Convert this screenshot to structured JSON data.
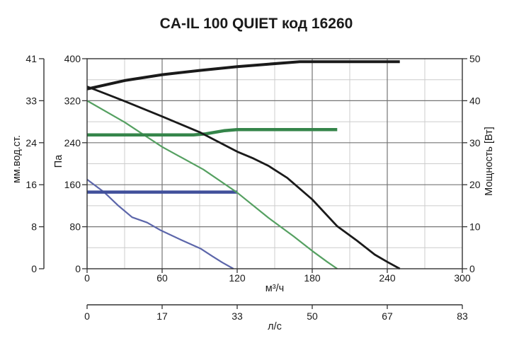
{
  "title": "CA-IL 100 QUIET код 16260",
  "chart_data": {
    "type": "line",
    "title": "CA-IL 100 QUIET код 16260",
    "grid": {
      "major_color": "#757575",
      "minor_color": "#cccccc",
      "border_color": "#333333",
      "tick_color": "#333333"
    },
    "axes": {
      "x_primary": {
        "label": "м³/ч",
        "range": [
          0,
          300
        ],
        "ticks": [
          0,
          60,
          120,
          180,
          240,
          300
        ],
        "minor_ticks": [
          30,
          90,
          150,
          210,
          270
        ]
      },
      "x_secondary": {
        "label": "л/с",
        "ticks": [
          0,
          17,
          33,
          50,
          67,
          83
        ],
        "align_to_x": [
          0,
          60,
          120,
          180,
          240,
          300
        ]
      },
      "y_pressure_pa": {
        "label": "Па",
        "range": [
          0,
          400
        ],
        "ticks": [
          0,
          80,
          160,
          240,
          320,
          400
        ],
        "minor_ticks": [
          40,
          120,
          200,
          280,
          360
        ]
      },
      "y_pressure_mm": {
        "label": "мм.вод.ст.",
        "ticks": [
          0,
          8,
          16,
          24,
          33,
          41
        ],
        "align_to_pa": [
          0,
          80,
          160,
          240,
          320,
          400
        ]
      },
      "y_power": {
        "label": "Мощность [Вт]",
        "range": [
          0,
          50
        ],
        "ticks": [
          0,
          10,
          20,
          30,
          40,
          50
        ]
      }
    },
    "series": [
      {
        "name": "pressure-curve-speed1-blue",
        "axis": "pa",
        "color": "#5c66aa",
        "width": 2.2,
        "points": [
          [
            0,
            170
          ],
          [
            14,
            145
          ],
          [
            25,
            120
          ],
          [
            36,
            98
          ],
          [
            48,
            88
          ],
          [
            59,
            73
          ],
          [
            76,
            54
          ],
          [
            91,
            38
          ],
          [
            100,
            24
          ],
          [
            108,
            12
          ],
          [
            117,
            0
          ]
        ]
      },
      {
        "name": "working-line-speed1-blue",
        "axis": "pa",
        "color": "#41509b",
        "width": 4.5,
        "points": [
          [
            0,
            146
          ],
          [
            120,
            146
          ]
        ]
      },
      {
        "name": "pressure-curve-speed2-green",
        "axis": "pa",
        "color": "#55a061",
        "width": 2.2,
        "points": [
          [
            0,
            320
          ],
          [
            30,
            279
          ],
          [
            60,
            232
          ],
          [
            93,
            189
          ],
          [
            120,
            145
          ],
          [
            145,
            97
          ],
          [
            165,
            62
          ],
          [
            180,
            34
          ],
          [
            192,
            13
          ],
          [
            200,
            0
          ]
        ]
      },
      {
        "name": "working-line-speed2-green",
        "axis": "pa",
        "color": "#35854a",
        "width": 4.5,
        "points": [
          [
            0,
            255
          ],
          [
            85,
            255
          ],
          [
            95,
            257
          ],
          [
            110,
            263
          ],
          [
            120,
            265
          ],
          [
            200,
            265
          ]
        ]
      },
      {
        "name": "pressure-curve-max-black",
        "axis": "pa",
        "color": "#1a1a1a",
        "width": 2.8,
        "points": [
          [
            0,
            347
          ],
          [
            15,
            333
          ],
          [
            30,
            319
          ],
          [
            60,
            290
          ],
          [
            90,
            260
          ],
          [
            120,
            223
          ],
          [
            133,
            210
          ],
          [
            145,
            196
          ],
          [
            160,
            173
          ],
          [
            180,
            132
          ],
          [
            200,
            81
          ],
          [
            215,
            55
          ],
          [
            230,
            27
          ],
          [
            240,
            13
          ],
          [
            250,
            0
          ]
        ]
      },
      {
        "name": "power-curve-black",
        "axis": "power",
        "color": "#1a1a1a",
        "width": 4,
        "points": [
          [
            0,
            42.8
          ],
          [
            30,
            44.8
          ],
          [
            60,
            46.2
          ],
          [
            90,
            47.2
          ],
          [
            120,
            48.1
          ],
          [
            145,
            48.7
          ],
          [
            170,
            49.3
          ],
          [
            250,
            49.3
          ]
        ]
      }
    ]
  }
}
